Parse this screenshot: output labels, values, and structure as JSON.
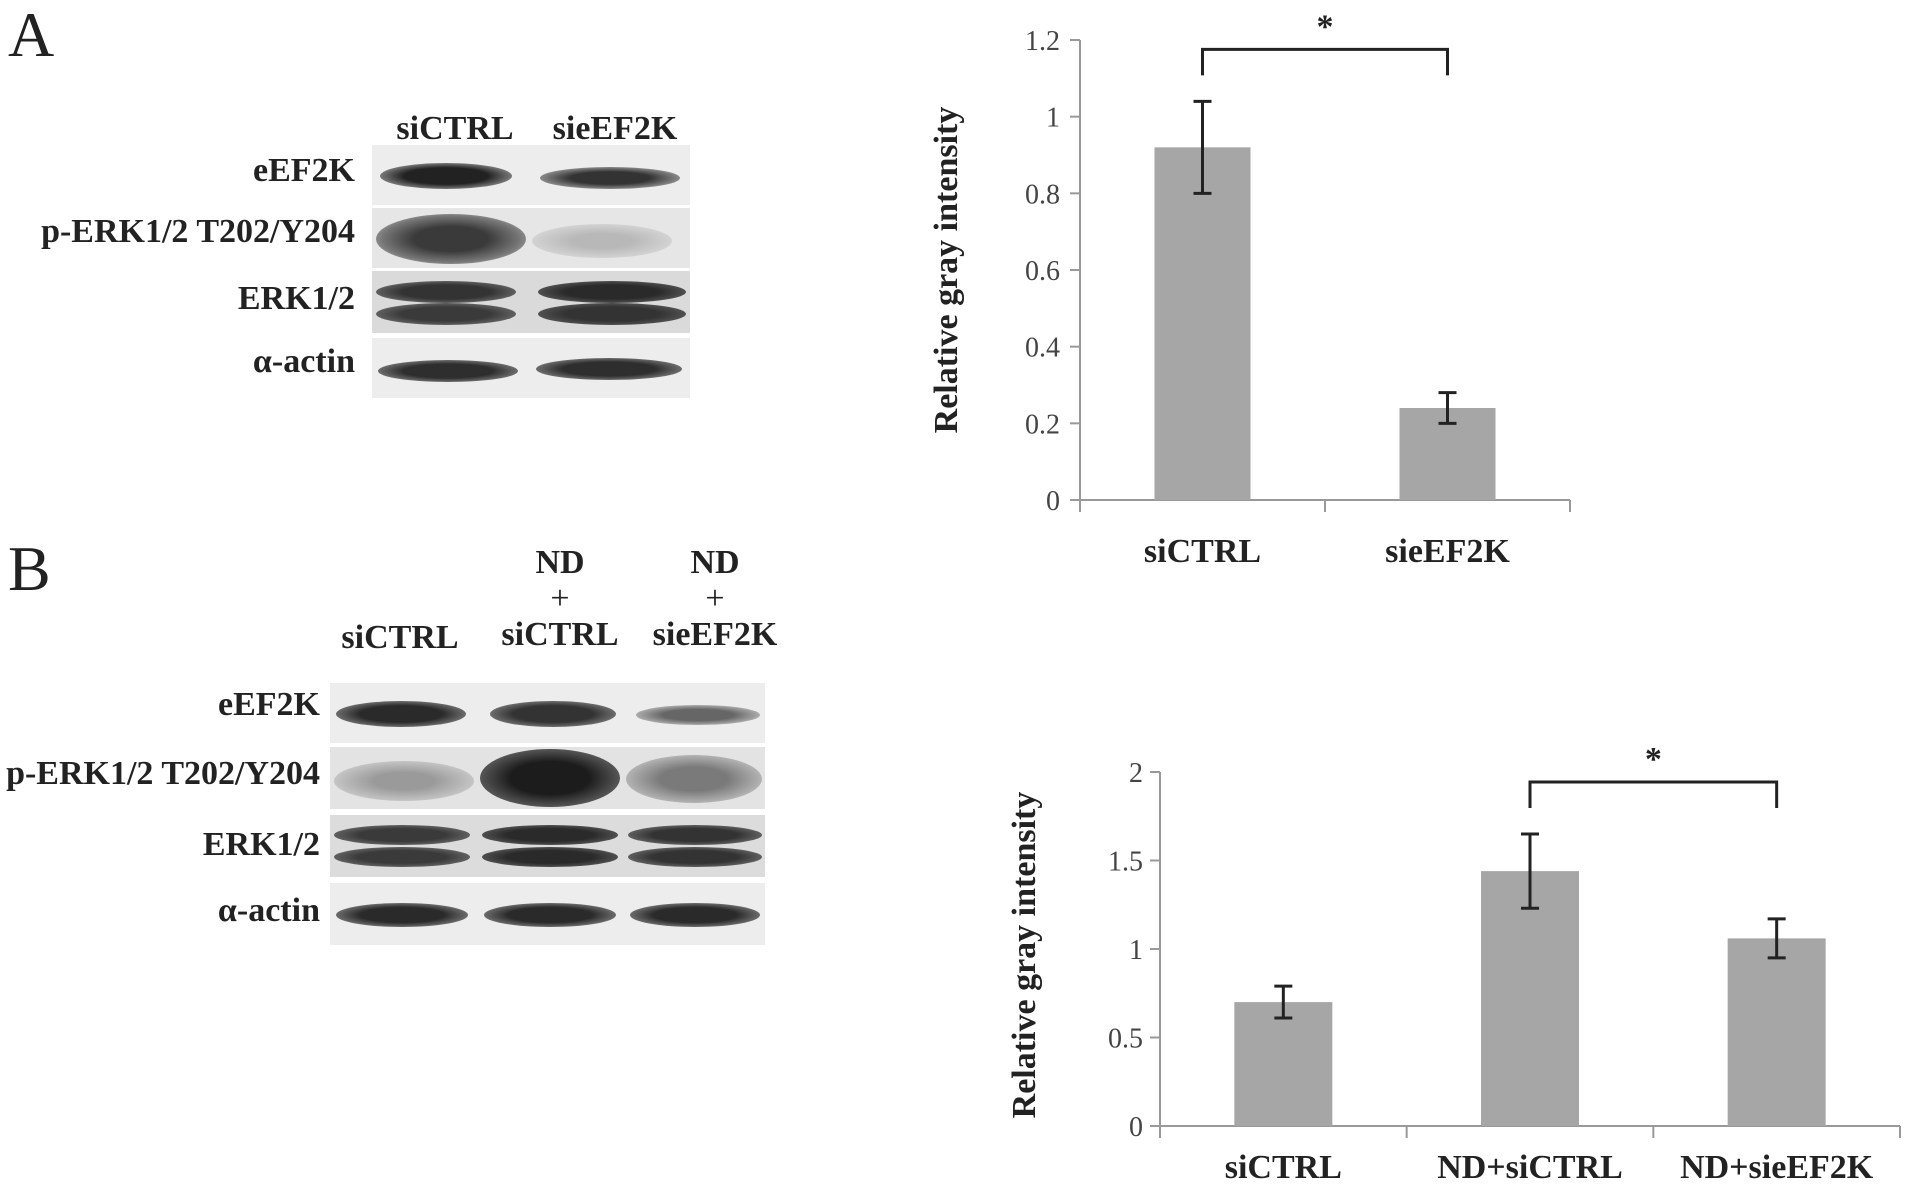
{
  "panel_a": {
    "letter": "A",
    "lanes": [
      "siCTRL",
      "sieEF2K"
    ],
    "rows": [
      "eEF2K",
      "p-ERK1/2 T202/Y204",
      "ERK1/2",
      "α-actin"
    ]
  },
  "panel_b": {
    "letter": "B",
    "lanes": [
      {
        "lines": [
          "siCTRL"
        ]
      },
      {
        "lines": [
          "ND",
          "+",
          "siCTRL"
        ]
      },
      {
        "lines": [
          "ND",
          "+",
          "sieEF2K"
        ]
      }
    ],
    "rows": [
      "eEF2K",
      "p-ERK1/2 T202/Y204",
      "ERK1/2",
      "α-actin"
    ]
  },
  "colors": {
    "bar": "#a6a6a6",
    "axis": "#999999",
    "error": "#222222",
    "text": "#222222"
  },
  "chart_data": [
    {
      "type": "bar",
      "categories": [
        "siCTRL",
        "sieEF2K"
      ],
      "values": [
        0.92,
        0.24
      ],
      "errors": [
        0.12,
        0.04
      ],
      "ylabel": "Relative gray intensity",
      "ylim": [
        0,
        1.2
      ],
      "yticks": [
        "0",
        "0.2",
        "0.4",
        "0.6",
        "0.8",
        "1",
        "1.2"
      ],
      "significance": [
        {
          "from": 0,
          "to": 1,
          "label": "*"
        }
      ]
    },
    {
      "type": "bar",
      "categories": [
        "siCTRL",
        "ND+siCTRL",
        "ND+sieEF2K"
      ],
      "values": [
        0.7,
        1.44,
        1.06
      ],
      "errors": [
        0.09,
        0.21,
        0.11
      ],
      "ylabel": "Relative gray intensity",
      "ylim": [
        0,
        2
      ],
      "yticks": [
        "0",
        "0.5",
        "1",
        "1.5",
        "2"
      ],
      "significance": [
        {
          "from": 1,
          "to": 2,
          "label": "*"
        }
      ]
    }
  ]
}
